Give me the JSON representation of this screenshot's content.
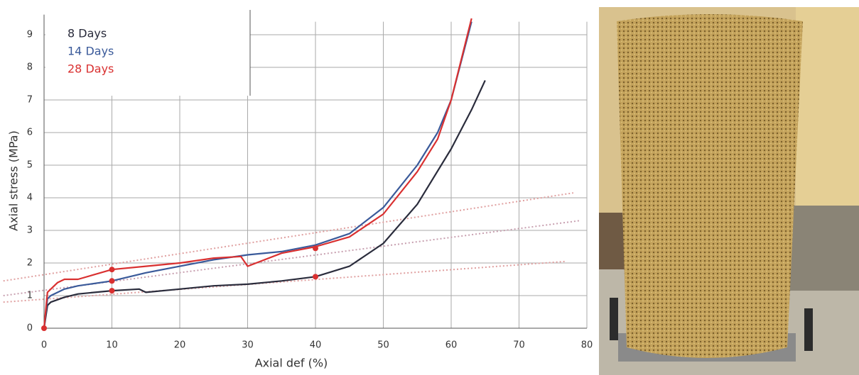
{
  "chart_data": {
    "type": "line",
    "xlabel": "Axial def (%)",
    "ylabel": "Axial stress (MPa)",
    "xlim": [
      0,
      80
    ],
    "ylim": [
      0,
      9.4
    ],
    "xticks": [
      0,
      10,
      20,
      30,
      40,
      50,
      60,
      70,
      80
    ],
    "yticks": [
      0,
      1,
      2,
      3,
      4,
      5,
      6,
      7,
      8,
      9
    ],
    "grid": true,
    "legend": "upper left",
    "series": [
      {
        "name": "8 Days",
        "color": "#2a2c3c",
        "x": [
          0,
          0.5,
          1,
          3,
          5,
          10,
          14,
          15,
          20,
          25,
          30,
          35,
          40,
          45,
          50,
          55,
          60,
          63,
          65
        ],
        "values": [
          0,
          0.7,
          0.8,
          0.95,
          1.05,
          1.15,
          1.2,
          1.1,
          1.2,
          1.3,
          1.35,
          1.45,
          1.58,
          1.9,
          2.6,
          3.8,
          5.5,
          6.7,
          7.6
        ]
      },
      {
        "name": "14 Days",
        "color": "#3a5a9a",
        "x": [
          0,
          0.5,
          1,
          3,
          5,
          10,
          15,
          20,
          25,
          30,
          35,
          40,
          45,
          50,
          55,
          58,
          60,
          63
        ],
        "values": [
          0,
          0.9,
          1.0,
          1.2,
          1.3,
          1.45,
          1.7,
          1.9,
          2.1,
          2.25,
          2.35,
          2.55,
          2.9,
          3.7,
          5.0,
          6.0,
          7.0,
          9.4
        ]
      },
      {
        "name": "28 Days",
        "color": "#d93030",
        "x": [
          0,
          0.5,
          1,
          2,
          3,
          5,
          10,
          15,
          20,
          25,
          29,
          30,
          35,
          40,
          45,
          50,
          55,
          58,
          60,
          63
        ],
        "values": [
          0,
          1.1,
          1.2,
          1.4,
          1.5,
          1.5,
          1.8,
          1.9,
          2.0,
          2.15,
          2.2,
          1.9,
          2.3,
          2.5,
          2.8,
          3.5,
          4.8,
          5.8,
          7.0,
          9.5
        ]
      }
    ],
    "trend_lines": [
      {
        "color": "#e0a0a0",
        "x": [
          -6,
          77
        ],
        "values": [
          0.8,
          2.05
        ]
      },
      {
        "color": "#c8a0b0",
        "x": [
          -6,
          79
        ],
        "values": [
          1.0,
          3.3
        ]
      },
      {
        "color": "#e0a0a0",
        "x": [
          -6,
          78
        ],
        "values": [
          1.45,
          4.15
        ]
      }
    ],
    "points": {
      "color": "#d93030",
      "x": [
        0,
        10,
        10,
        10,
        40,
        40
      ],
      "values": [
        0,
        1.15,
        1.45,
        1.8,
        1.58,
        2.45
      ]
    }
  }
}
